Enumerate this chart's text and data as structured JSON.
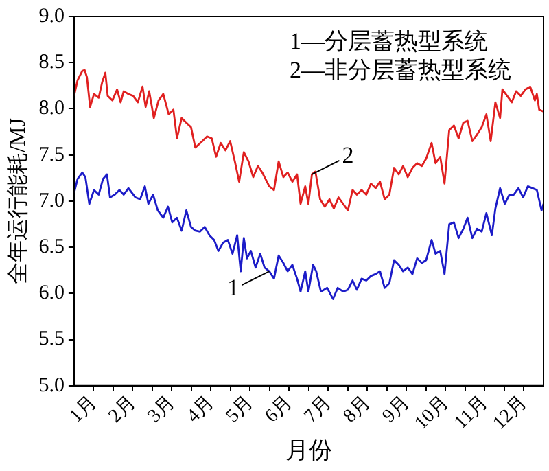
{
  "chart_data": {
    "type": "line",
    "xlabel": "月份",
    "ylabel": "全年运行能耗/MJ",
    "xlim": [
      0,
      12
    ],
    "xticks": [
      {
        "value": 0.5,
        "label": "1月"
      },
      {
        "value": 1,
        "label": null
      },
      {
        "value": 1.5,
        "label": "2月"
      },
      {
        "value": 2,
        "label": null
      },
      {
        "value": 2.5,
        "label": "3月"
      },
      {
        "value": 3,
        "label": null
      },
      {
        "value": 3.5,
        "label": "4月"
      },
      {
        "value": 4,
        "label": null
      },
      {
        "value": 4.5,
        "label": "5月"
      },
      {
        "value": 5,
        "label": null
      },
      {
        "value": 5.5,
        "label": "6月"
      },
      {
        "value": 6,
        "label": null
      },
      {
        "value": 6.5,
        "label": "7月"
      },
      {
        "value": 7,
        "label": null
      },
      {
        "value": 7.5,
        "label": "8月"
      },
      {
        "value": 8,
        "label": null
      },
      {
        "value": 8.5,
        "label": "9月"
      },
      {
        "value": 9,
        "label": null
      },
      {
        "value": 9.5,
        "label": "10月"
      },
      {
        "value": 10,
        "label": null
      },
      {
        "value": 10.5,
        "label": "11月"
      },
      {
        "value": 11,
        "label": null
      },
      {
        "value": 11.5,
        "label": "12月"
      }
    ],
    "ylim": [
      5,
      9
    ],
    "yticks": [
      {
        "value": 5,
        "label": "5.0"
      },
      {
        "value": 5.5,
        "label": "5.5"
      },
      {
        "value": 6,
        "label": "6.0"
      },
      {
        "value": 6.5,
        "label": "6.5"
      },
      {
        "value": 7,
        "label": "7.0"
      },
      {
        "value": 7.5,
        "label": "7.5"
      },
      {
        "value": 8,
        "label": "8.0"
      },
      {
        "value": 8.5,
        "label": "8.5"
      },
      {
        "value": 9,
        "label": "9.0"
      }
    ],
    "grid": false,
    "legend": false,
    "marker": "none",
    "line_style": "solid",
    "series": [
      {
        "color": "#1c1cc8",
        "x": [
          0,
          0.09,
          0.21,
          0.29,
          0.39,
          0.51,
          0.63,
          0.74,
          0.84,
          0.92,
          1.04,
          1.16,
          1.27,
          1.39,
          1.57,
          1.69,
          1.81,
          1.9,
          2.02,
          2.14,
          2.28,
          2.4,
          2.51,
          2.63,
          2.75,
          2.87,
          2.99,
          3.1,
          3.22,
          3.34,
          3.46,
          3.58,
          3.69,
          3.81,
          3.93,
          4.05,
          4.17,
          4.26,
          4.34,
          4.42,
          4.52,
          4.64,
          4.76,
          4.87,
          4.99,
          5.11,
          5.23,
          5.35,
          5.46,
          5.58,
          5.7,
          5.79,
          5.91,
          5.99,
          6.11,
          6.19,
          6.31,
          6.47,
          6.62,
          6.74,
          6.88,
          7,
          7.12,
          7.23,
          7.35,
          7.47,
          7.59,
          7.71,
          7.82,
          7.94,
          8.06,
          8.18,
          8.3,
          8.41,
          8.53,
          8.65,
          8.77,
          8.89,
          9,
          9.14,
          9.24,
          9.36,
          9.47,
          9.59,
          9.71,
          9.83,
          9.95,
          10.06,
          10.18,
          10.3,
          10.42,
          10.54,
          10.68,
          10.77,
          10.89,
          11.01,
          11.13,
          11.24,
          11.36,
          11.48,
          11.6,
          11.72,
          11.83,
          11.95,
          12
        ],
        "values": [
          7.09,
          7.24,
          7.31,
          7.26,
          6.97,
          7.12,
          7.07,
          7.24,
          7.29,
          7.04,
          7.07,
          7.12,
          7.07,
          7.14,
          7.04,
          7.02,
          7.16,
          6.97,
          7.07,
          6.9,
          6.82,
          6.94,
          6.77,
          6.82,
          6.68,
          6.9,
          6.72,
          6.68,
          6.67,
          6.72,
          6.63,
          6.58,
          6.46,
          6.55,
          6.58,
          6.43,
          6.63,
          6.24,
          6.6,
          6.38,
          6.46,
          6.28,
          6.43,
          6.28,
          6.24,
          6.16,
          6.41,
          6.33,
          6.24,
          6.31,
          6.16,
          6.02,
          6.24,
          6.02,
          6.31,
          6.24,
          6.02,
          6.06,
          5.94,
          6.06,
          6.02,
          6.04,
          6.14,
          6.04,
          6.16,
          6.14,
          6.19,
          6.21,
          6.24,
          6.06,
          6.11,
          6.36,
          6.31,
          6.24,
          6.28,
          6.21,
          6.38,
          6.33,
          6.36,
          6.58,
          6.43,
          6.46,
          6.21,
          6.75,
          6.77,
          6.6,
          6.7,
          6.82,
          6.6,
          6.7,
          6.67,
          6.87,
          6.63,
          6.92,
          7.14,
          6.97,
          7.07,
          7.07,
          7.14,
          7.04,
          7.16,
          7.14,
          7.12,
          6.9,
          6.97
        ]
      },
      {
        "color": "#e02020",
        "x": [
          0,
          0.09,
          0.21,
          0.27,
          0.33,
          0.41,
          0.51,
          0.63,
          0.72,
          0.8,
          0.86,
          0.98,
          1.1,
          1.19,
          1.27,
          1.39,
          1.51,
          1.63,
          1.75,
          1.83,
          1.92,
          2.04,
          2.16,
          2.28,
          2.42,
          2.54,
          2.63,
          2.75,
          2.87,
          2.99,
          3.1,
          3.28,
          3.4,
          3.52,
          3.63,
          3.75,
          3.87,
          3.99,
          4.11,
          4.22,
          4.34,
          4.46,
          4.58,
          4.7,
          4.81,
          4.99,
          5.11,
          5.23,
          5.35,
          5.46,
          5.58,
          5.7,
          5.79,
          5.91,
          5.99,
          6.08,
          6.17,
          6.29,
          6.41,
          6.53,
          6.64,
          6.76,
          6.88,
          7,
          7.12,
          7.23,
          7.35,
          7.47,
          7.59,
          7.71,
          7.82,
          7.94,
          8.06,
          8.18,
          8.3,
          8.41,
          8.53,
          8.65,
          8.77,
          8.89,
          9,
          9.14,
          9.24,
          9.36,
          9.47,
          9.59,
          9.71,
          9.83,
          9.95,
          10.06,
          10.18,
          10.3,
          10.42,
          10.54,
          10.65,
          10.77,
          10.89,
          10.95,
          11.07,
          11.19,
          11.3,
          11.42,
          11.54,
          11.66,
          11.78,
          11.83,
          11.89,
          12
        ],
        "values": [
          8.14,
          8.31,
          8.41,
          8.42,
          8.34,
          8.02,
          8.16,
          8.12,
          8.29,
          8.39,
          8.14,
          8.09,
          8.21,
          8.07,
          8.19,
          8.16,
          8.14,
          8.07,
          8.24,
          8.02,
          8.19,
          7.9,
          8.09,
          8.16,
          7.94,
          7.99,
          7.68,
          7.9,
          7.85,
          7.8,
          7.58,
          7.65,
          7.7,
          7.68,
          7.48,
          7.63,
          7.55,
          7.65,
          7.43,
          7.21,
          7.53,
          7.43,
          7.26,
          7.38,
          7.31,
          7.16,
          7.12,
          7.43,
          7.26,
          7.31,
          7.21,
          7.29,
          6.97,
          7.16,
          6.97,
          7.29,
          7.32,
          7.02,
          6.94,
          7.02,
          6.92,
          7.04,
          6.97,
          6.9,
          7.12,
          7.07,
          7.12,
          7.07,
          7.19,
          7.14,
          7.21,
          7.02,
          7.07,
          7.36,
          7.29,
          7.38,
          7.26,
          7.36,
          7.41,
          7.38,
          7.46,
          7.63,
          7.41,
          7.48,
          7.19,
          7.77,
          7.82,
          7.68,
          7.85,
          7.87,
          7.65,
          7.72,
          7.8,
          7.94,
          7.65,
          8.07,
          7.9,
          8.21,
          8.14,
          8.07,
          8.19,
          8.14,
          8.21,
          8.24,
          8.09,
          8.16,
          7.99,
          7.97
        ]
      }
    ],
    "annotations": [
      "1—分层蓄热型系统",
      "2—非分层蓄热型系统",
      {
        "text": "1",
        "x": 4.99,
        "y": 6.24
      },
      {
        "text": "2",
        "x": 6.08,
        "y": 7.29
      }
    ]
  }
}
